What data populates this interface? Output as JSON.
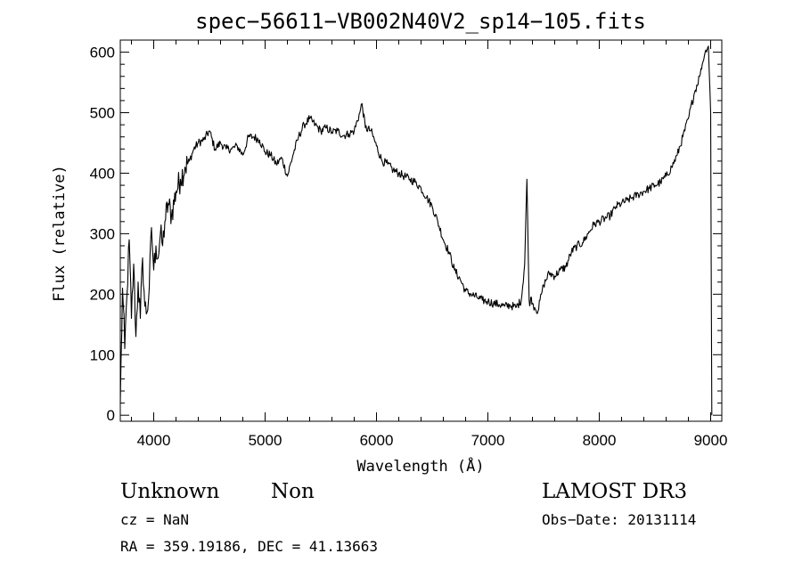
{
  "chart_data": {
    "type": "line",
    "title": "spec−56611−VB002N40V2_sp14−105.fits",
    "xlabel": "Wavelength (Å)",
    "ylabel": "Flux (relative)",
    "xlim": [
      3700,
      9100
    ],
    "ylim": [
      -10,
      620
    ],
    "x_ticks": [
      4000,
      5000,
      6000,
      7000,
      8000,
      9000
    ],
    "y_ticks": [
      0,
      100,
      200,
      300,
      400,
      500,
      600
    ],
    "grid": false,
    "series": [
      {
        "name": "flux",
        "x": [
          3700,
          3720,
          3740,
          3760,
          3780,
          3800,
          3820,
          3840,
          3860,
          3880,
          3900,
          3920,
          3940,
          3960,
          3980,
          4000,
          4020,
          4040,
          4060,
          4080,
          4100,
          4130,
          4160,
          4200,
          4240,
          4280,
          4320,
          4360,
          4400,
          4450,
          4500,
          4550,
          4600,
          4650,
          4700,
          4750,
          4800,
          4850,
          4900,
          4950,
          5000,
          5050,
          5100,
          5150,
          5200,
          5250,
          5300,
          5350,
          5400,
          5450,
          5500,
          5550,
          5600,
          5650,
          5700,
          5750,
          5800,
          5850,
          5870,
          5900,
          5950,
          6000,
          6050,
          6100,
          6150,
          6200,
          6250,
          6300,
          6350,
          6400,
          6450,
          6500,
          6550,
          6600,
          6650,
          6700,
          6750,
          6800,
          6850,
          6900,
          6950,
          7000,
          7050,
          7100,
          7150,
          7200,
          7250,
          7300,
          7330,
          7350,
          7370,
          7380,
          7390,
          7400,
          7420,
          7450,
          7480,
          7500,
          7550,
          7600,
          7650,
          7700,
          7750,
          7800,
          7850,
          7900,
          7950,
          8000,
          8050,
          8100,
          8150,
          8200,
          8250,
          8300,
          8350,
          8400,
          8450,
          8500,
          8550,
          8600,
          8650,
          8700,
          8750,
          8800,
          8850,
          8900,
          8950,
          8980,
          9000,
          9010
        ],
        "values": [
          20,
          210,
          110,
          200,
          290,
          160,
          250,
          130,
          220,
          160,
          260,
          180,
          170,
          210,
          310,
          240,
          280,
          260,
          300,
          280,
          320,
          350,
          330,
          370,
          390,
          410,
          420,
          440,
          450,
          455,
          470,
          440,
          450,
          440,
          440,
          445,
          430,
          460,
          460,
          455,
          435,
          430,
          415,
          425,
          395,
          430,
          460,
          480,
          490,
          480,
          470,
          475,
          468,
          470,
          462,
          465,
          470,
          500,
          515,
          475,
          470,
          445,
          420,
          415,
          405,
          400,
          395,
          390,
          385,
          375,
          360,
          345,
          320,
          290,
          270,
          240,
          225,
          205,
          200,
          195,
          190,
          188,
          185,
          183,
          180,
          182,
          178,
          190,
          250,
          390,
          190,
          185,
          195,
          185,
          178,
          172,
          200,
          215,
          235,
          230,
          240,
          245,
          270,
          280,
          285,
          300,
          315,
          320,
          325,
          330,
          345,
          350,
          355,
          360,
          365,
          370,
          375,
          380,
          385,
          395,
          410,
          430,
          460,
          490,
          530,
          560,
          600,
          610,
          500,
          0
        ]
      }
    ]
  },
  "info": {
    "object_class": "Unknown",
    "object_subclass": "Non",
    "survey": "LAMOST DR3",
    "redshift": "cz = NaN",
    "obs_date": "Obs−Date: 20131114",
    "coords": "RA = 359.19186, DEC =  41.13663"
  }
}
